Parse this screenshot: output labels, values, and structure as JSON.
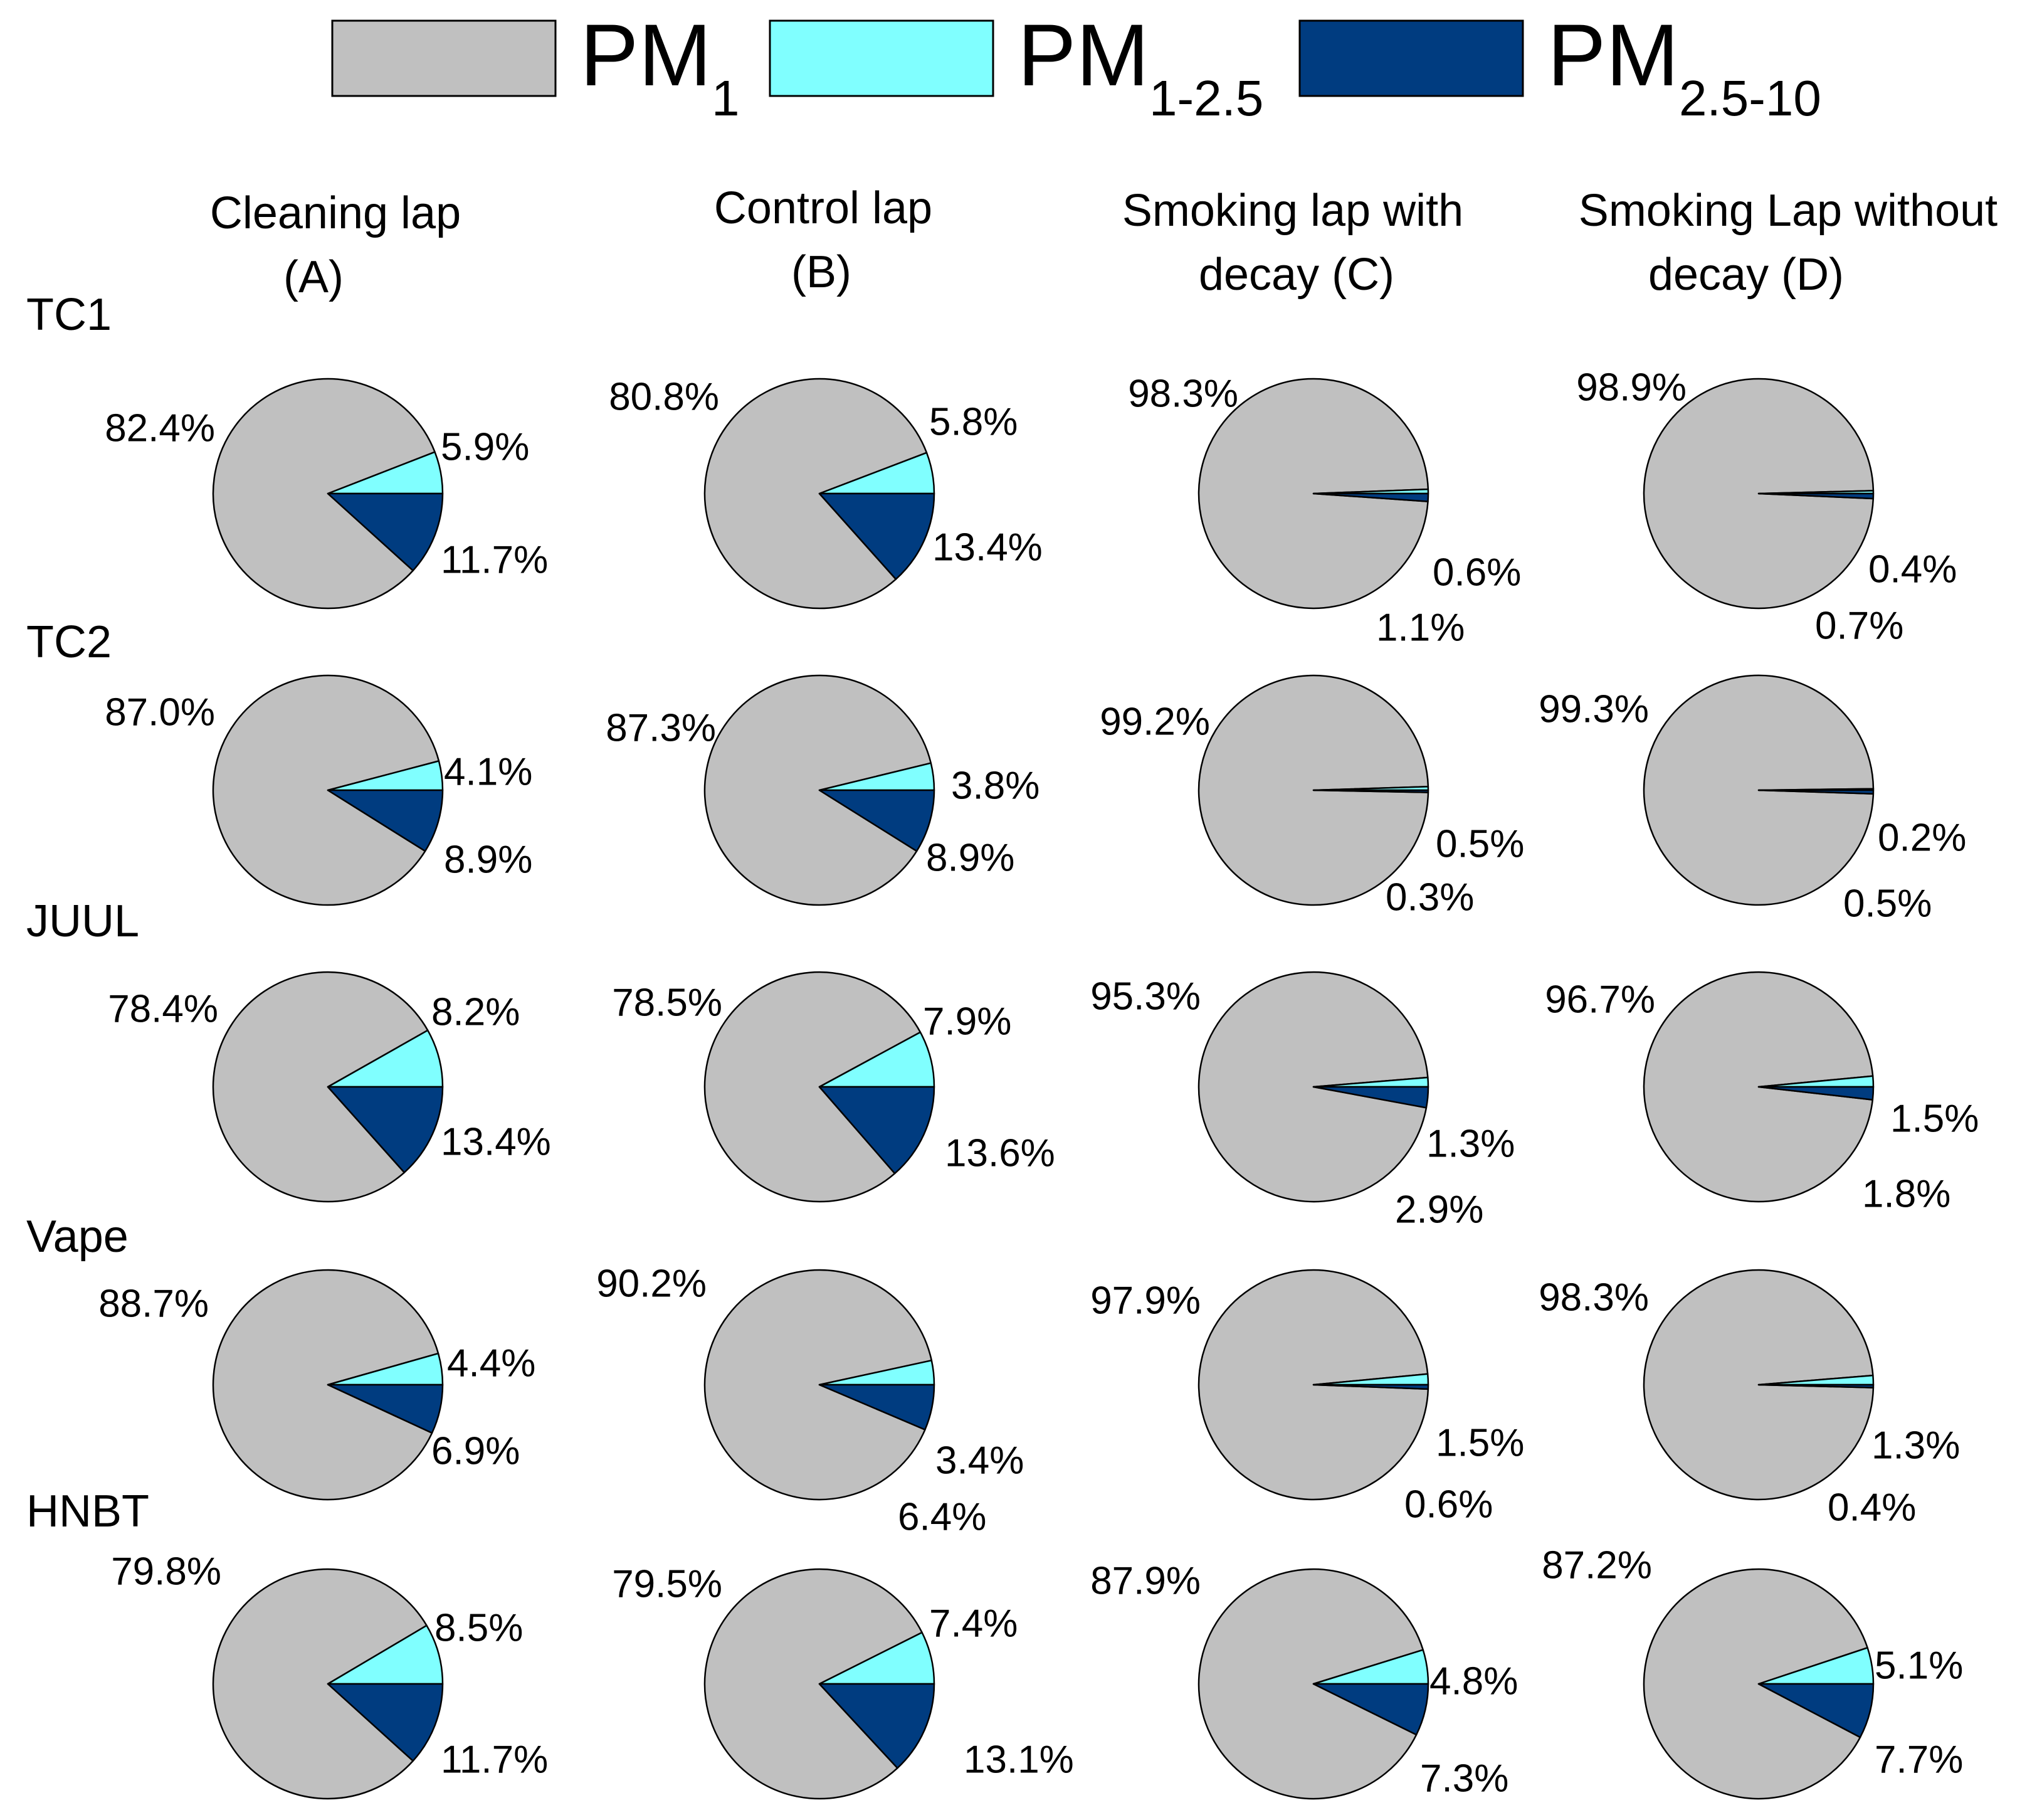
{
  "colors": {
    "pm1": "#c0c0c0",
    "pm1_2_5": "#80ffff",
    "pm2_5_10": "#003c80"
  },
  "legend": {
    "entries": [
      {
        "key": "pm1",
        "main": "PM",
        "sub": "1"
      },
      {
        "key": "pm1_2_5",
        "main": "PM",
        "sub": "1-2.5"
      },
      {
        "key": "pm2_5_10",
        "main": "PM",
        "sub": "2.5-10"
      }
    ]
  },
  "columns": [
    {
      "line1": "Cleaning lap",
      "line2": "(A)"
    },
    {
      "line1": "Control lap",
      "line2": "(B)"
    },
    {
      "line1": "Smoking lap with",
      "line2": "decay (C)"
    },
    {
      "line1": "Smoking Lap without",
      "line2": "decay (D)"
    }
  ],
  "rows": [
    "TC1",
    "TC2",
    "JUUL",
    "Vape",
    "HNBT"
  ],
  "chart_data": {
    "type": "pie",
    "series_names": [
      "PM1",
      "PM1-2.5",
      "PM2.5-10"
    ],
    "units": "%",
    "cells": [
      [
        {
          "row": "TC1",
          "column": "A",
          "values": [
            82.4,
            5.9,
            11.7
          ],
          "labels": [
            "82.4%",
            "5.9%",
            "11.7%"
          ]
        },
        {
          "row": "TC1",
          "column": "B",
          "values": [
            80.8,
            5.8,
            13.4
          ],
          "labels": [
            "80.8%",
            "5.8%",
            "13.4%"
          ]
        },
        {
          "row": "TC1",
          "column": "C",
          "values": [
            98.3,
            0.6,
            1.1
          ],
          "labels": [
            "98.3%",
            "0.6%",
            "1.1%"
          ]
        },
        {
          "row": "TC1",
          "column": "D",
          "values": [
            98.9,
            0.4,
            0.7
          ],
          "labels": [
            "98.9%",
            "0.4%",
            "0.7%"
          ]
        }
      ],
      [
        {
          "row": "TC2",
          "column": "A",
          "values": [
            87.0,
            4.1,
            8.9
          ],
          "labels": [
            "87.0%",
            "4.1%",
            "8.9%"
          ]
        },
        {
          "row": "TC2",
          "column": "B",
          "values": [
            87.3,
            3.8,
            8.9
          ],
          "labels": [
            "87.3%",
            "3.8%",
            "8.9%"
          ]
        },
        {
          "row": "TC2",
          "column": "C",
          "values": [
            99.2,
            0.5,
            0.3
          ],
          "labels": [
            "99.2%",
            "0.5%",
            "0.3%"
          ]
        },
        {
          "row": "TC2",
          "column": "D",
          "values": [
            99.3,
            0.2,
            0.5
          ],
          "labels": [
            "99.3%",
            "0.2%",
            "0.5%"
          ]
        }
      ],
      [
        {
          "row": "JUUL",
          "column": "A",
          "values": [
            78.4,
            8.2,
            13.4
          ],
          "labels": [
            "78.4%",
            "8.2%",
            "13.4%"
          ]
        },
        {
          "row": "JUUL",
          "column": "B",
          "values": [
            78.5,
            7.9,
            13.6
          ],
          "labels": [
            "78.5%",
            "7.9%",
            "13.6%"
          ]
        },
        {
          "row": "JUUL",
          "column": "C",
          "values": [
            95.3,
            1.3,
            2.9
          ],
          "labels": [
            "95.3%",
            "1.3%",
            "2.9%"
          ]
        },
        {
          "row": "JUUL",
          "column": "D",
          "values": [
            96.7,
            1.5,
            1.8
          ],
          "labels": [
            "96.7%",
            "1.5%",
            "1.8%"
          ]
        }
      ],
      [
        {
          "row": "Vape",
          "column": "A",
          "values": [
            88.7,
            4.4,
            6.9
          ],
          "labels": [
            "88.7%",
            "4.4%",
            "6.9%"
          ]
        },
        {
          "row": "Vape",
          "column": "B",
          "values": [
            90.2,
            3.4,
            6.4
          ],
          "labels": [
            "90.2%",
            "3.4%",
            "6.4%"
          ]
        },
        {
          "row": "Vape",
          "column": "C",
          "values": [
            97.9,
            1.5,
            0.6
          ],
          "labels": [
            "97.9%",
            "1.5%",
            "0.6%"
          ]
        },
        {
          "row": "Vape",
          "column": "D",
          "values": [
            98.3,
            1.3,
            0.4
          ],
          "labels": [
            "98.3%",
            "1.3%",
            "0.4%"
          ]
        }
      ],
      [
        {
          "row": "HNBT",
          "column": "A",
          "values": [
            79.8,
            8.5,
            11.7
          ],
          "labels": [
            "79.8%",
            "8.5%",
            "11.7%"
          ]
        },
        {
          "row": "HNBT",
          "column": "B",
          "values": [
            79.5,
            7.4,
            13.1
          ],
          "labels": [
            "79.5%",
            "7.4%",
            "13.1%"
          ]
        },
        {
          "row": "HNBT",
          "column": "C",
          "values": [
            87.9,
            4.8,
            7.3
          ],
          "labels": [
            "87.9%",
            "4.8%",
            "7.3%"
          ]
        },
        {
          "row": "HNBT",
          "column": "D",
          "values": [
            87.2,
            5.1,
            7.7
          ],
          "labels": [
            "87.2%",
            "5.1%",
            "7.7%"
          ]
        }
      ]
    ]
  }
}
